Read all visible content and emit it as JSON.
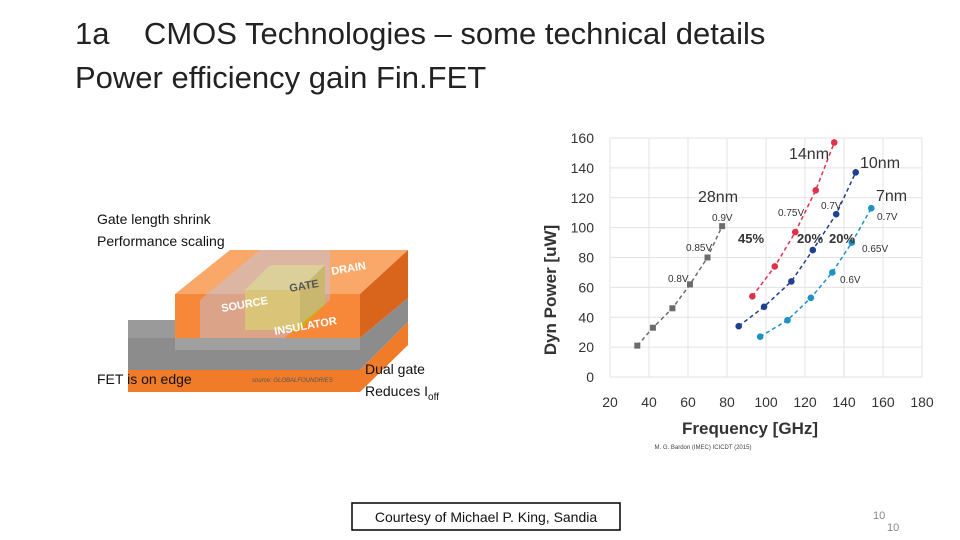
{
  "slide": {
    "title_lines": [
      "1a    CMOS Technologies – some technical details",
      "Power efficiency gain Fin.FET"
    ],
    "left_labels": [
      "Gate length shrink",
      "Performance scaling",
      "FET is on edge"
    ],
    "dual_gate": "Dual gate",
    "reduces": "Reduces I",
    "subscript": "off",
    "diagram_labels": [
      "DRAIN",
      "GATE",
      "SOURCE",
      "INSULATOR"
    ],
    "image_source": "source: GLOBALFOUNDRIES",
    "citation": "M. G. Bardon (IMEC) ICICDT (2015)",
    "courtesy": "Courtesy of Michael P. King, Sandia",
    "page_numbers": [
      "10",
      "10"
    ]
  },
  "chart": {
    "type": "line",
    "xlabel": "Frequency [GHz]",
    "ylabel": "Dyn Power [uW]",
    "xlim": [
      20,
      180
    ],
    "ylim": [
      0,
      160
    ],
    "xticks": [
      20,
      40,
      60,
      80,
      100,
      120,
      140,
      160,
      180
    ],
    "yticks": [
      0,
      20,
      40,
      60,
      80,
      100,
      120,
      140,
      160
    ],
    "grid": true,
    "series": [
      {
        "name": "28nm",
        "color": "#6b6b6b",
        "marker": "square",
        "x": [
          34,
          42,
          52,
          61,
          70,
          77.5
        ],
        "values": [
          21,
          33,
          46,
          62,
          80,
          101
        ]
      },
      {
        "name": "14nm",
        "color": "#e0314b",
        "marker": "circle",
        "x": [
          93,
          104.5,
          115,
          125.5,
          135
        ],
        "values": [
          54,
          74,
          97,
          125,
          157
        ]
      },
      {
        "name": "10nm",
        "color": "#1f3f8f",
        "marker": "circle",
        "x": [
          86,
          99,
          113,
          124,
          136,
          146
        ],
        "values": [
          34,
          47,
          64,
          85,
          109,
          137
        ]
      },
      {
        "name": "7nm",
        "color": "#1e90c8",
        "marker": "circle",
        "x": [
          97,
          111,
          123,
          134,
          144,
          154
        ],
        "values": [
          27,
          38,
          53,
          70,
          90,
          113
        ]
      }
    ],
    "annotations": [
      "0.9V",
      "0.85V",
      "0.8V",
      "0.75V",
      "0.7V",
      "0.7V",
      "0.65V",
      "0.6V",
      "45%",
      "20%",
      "20%"
    ]
  }
}
